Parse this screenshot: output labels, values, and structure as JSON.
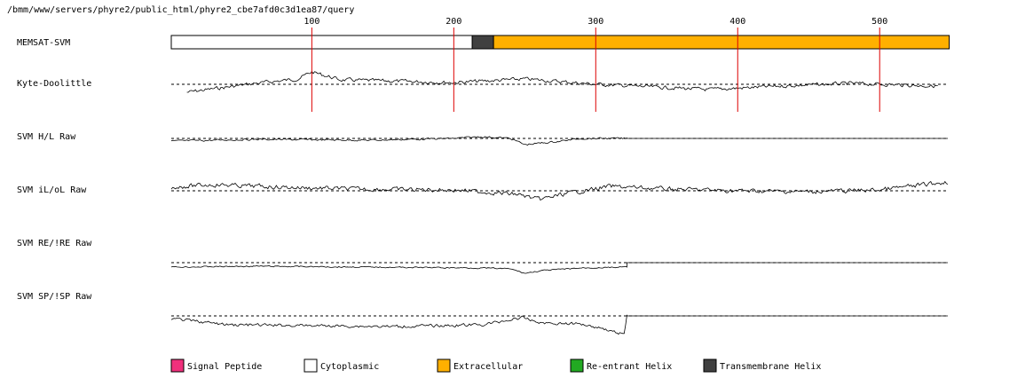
{
  "header": {
    "path": "/bmm/www/servers/phyre2/public_html/phyre2_cbe7afd0c3d1ea87/query"
  },
  "chart_data": {
    "type": "line",
    "title": "",
    "x_axis": {
      "range": [
        1,
        548
      ],
      "ticks": [
        100,
        200,
        300,
        400,
        500
      ],
      "tick_labels": [
        "100",
        "200",
        "300",
        "400",
        "500"
      ],
      "tick_color": "#dd0000"
    },
    "topology": {
      "name": "MEMSAT-SVM",
      "segments": [
        {
          "start": 1,
          "end": 212,
          "type": "Cytoplasmic",
          "color": "#ffffff"
        },
        {
          "start": 213,
          "end": 227,
          "type": "Transmembrane Helix",
          "color": "#404040"
        },
        {
          "start": 228,
          "end": 548,
          "type": "Extracellular",
          "color": "#ffb000"
        }
      ]
    },
    "tracks": [
      {
        "name": "Kyte-Doolittle",
        "start": 12,
        "end": 541,
        "noise": 1.0,
        "trend": [
          [
            12,
            9
          ],
          [
            60,
            -1
          ],
          [
            90,
            -6
          ],
          [
            100,
            -14
          ],
          [
            120,
            -5
          ],
          [
            200,
            -2
          ],
          [
            250,
            -6
          ],
          [
            300,
            0
          ],
          [
            380,
            6
          ],
          [
            430,
            2
          ],
          [
            480,
            -1
          ],
          [
            541,
            2
          ]
        ]
      },
      {
        "name": "SVM H/L Raw",
        "start": 1,
        "end": 322,
        "noise": 0.5,
        "flat_after": 0,
        "trend": [
          [
            1,
            3
          ],
          [
            60,
            1
          ],
          [
            140,
            2
          ],
          [
            200,
            0
          ],
          [
            220,
            -2
          ],
          [
            240,
            0
          ],
          [
            250,
            7
          ],
          [
            270,
            4
          ],
          [
            290,
            0
          ],
          [
            322,
            0
          ]
        ]
      },
      {
        "name": "SVM iL/oL Raw",
        "start": 1,
        "end": 548,
        "noise": 1.2,
        "trend": [
          [
            1,
            -4
          ],
          [
            30,
            -7
          ],
          [
            80,
            -4
          ],
          [
            130,
            -2
          ],
          [
            200,
            -1
          ],
          [
            245,
            4
          ],
          [
            260,
            10
          ],
          [
            280,
            3
          ],
          [
            310,
            -5
          ],
          [
            350,
            -2
          ],
          [
            400,
            0
          ],
          [
            450,
            1
          ],
          [
            500,
            -1
          ],
          [
            548,
            -10
          ]
        ]
      },
      {
        "name": "SVM RE/!RE Raw",
        "start": 1,
        "end": 322,
        "noise": 0.35,
        "flat_after": 0,
        "trend": [
          [
            1,
            5
          ],
          [
            60,
            4
          ],
          [
            140,
            5
          ],
          [
            220,
            6
          ],
          [
            240,
            7
          ],
          [
            250,
            12
          ],
          [
            262,
            9
          ],
          [
            290,
            6
          ],
          [
            322,
            5
          ]
        ]
      },
      {
        "name": "SVM SP/!SP Raw",
        "start": 1,
        "end": 322,
        "noise": 0.8,
        "flat_after": 0,
        "trend": [
          [
            1,
            3
          ],
          [
            40,
            10
          ],
          [
            100,
            11
          ],
          [
            160,
            12
          ],
          [
            220,
            10
          ],
          [
            248,
            2
          ],
          [
            262,
            8
          ],
          [
            290,
            9
          ],
          [
            305,
            14
          ],
          [
            313,
            18
          ],
          [
            320,
            20
          ],
          [
            322,
            0
          ]
        ]
      }
    ],
    "legend": [
      {
        "label": "Signal Peptide",
        "color": "#f0307c"
      },
      {
        "label": "Cytoplasmic",
        "color": "#ffffff"
      },
      {
        "label": "Extracellular",
        "color": "#ffb000"
      },
      {
        "label": "Re-entrant Helix",
        "color": "#22aa22"
      },
      {
        "label": "Transmembrane Helix",
        "color": "#404040"
      }
    ]
  }
}
